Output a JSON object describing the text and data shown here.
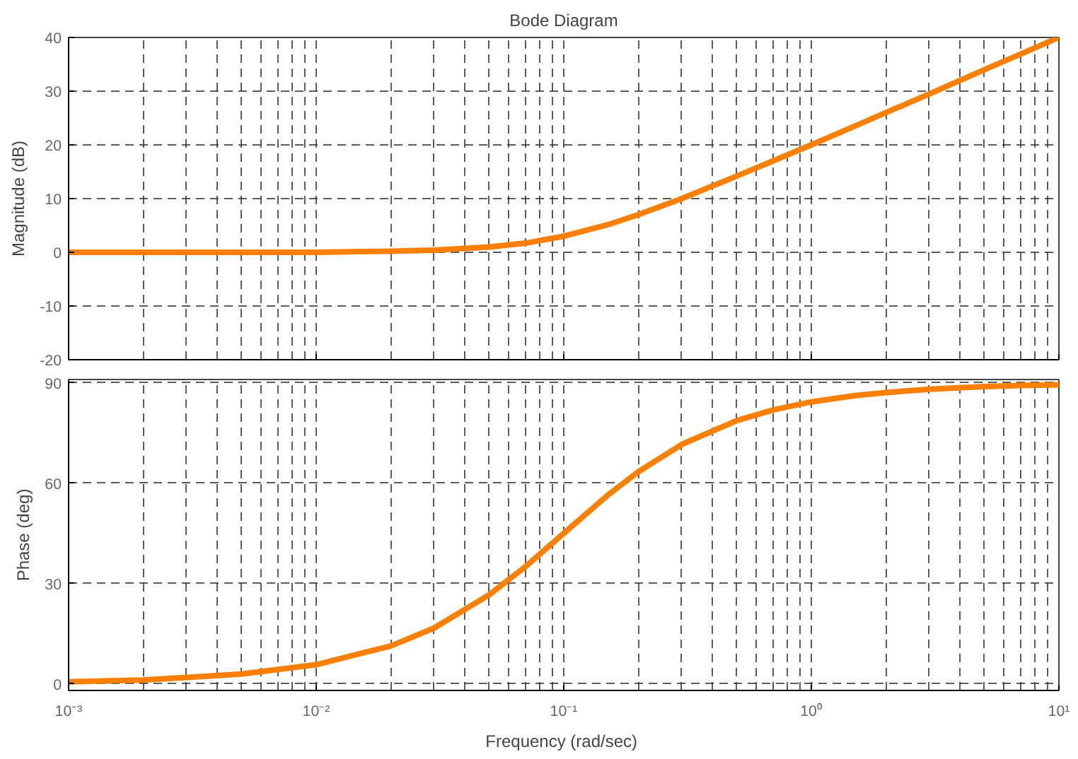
{
  "chart_data": [
    {
      "type": "line",
      "title": "Bode Diagram",
      "ylabel": "Magnitude (dB)",
      "log": "x",
      "grid": true,
      "line_style": "solid",
      "tick_labels": "y",
      "x": [
        0.001,
        0.002,
        0.005,
        0.01,
        0.02,
        0.03,
        0.05,
        0.07,
        0.1,
        0.15,
        0.2,
        0.3,
        0.5,
        0.7,
        1,
        1.5,
        2,
        3,
        5,
        7,
        10
      ],
      "series": [
        {
          "color": "#ff8000",
          "values": [
            0.0,
            0.0,
            0.0,
            0.0,
            0.2,
            0.4,
            1.0,
            1.7,
            3.0,
            5.1,
            7.0,
            10.0,
            14.2,
            17.0,
            20.0,
            23.5,
            26.0,
            29.5,
            34.0,
            36.9,
            40.0
          ]
        }
      ],
      "xlim": [
        0.001,
        10
      ],
      "xticks": [
        {
          "value": 0.001,
          "label": null
        },
        {
          "value": 0.01,
          "label": null
        },
        {
          "value": 0.1,
          "label": null
        },
        {
          "value": 1,
          "label": null
        },
        {
          "value": 10,
          "label": null
        }
      ],
      "ylim": [
        -20,
        40
      ],
      "yticks": [
        -20,
        -10,
        0,
        10,
        20,
        30,
        40
      ]
    },
    {
      "type": "line",
      "xlabel": "Frequency  (rad/sec)",
      "ylabel": "Phase (deg)",
      "log": "x",
      "grid": true,
      "line_style": "solid",
      "x": [
        0.001,
        0.002,
        0.005,
        0.01,
        0.02,
        0.03,
        0.05,
        0.07,
        0.1,
        0.15,
        0.2,
        0.3,
        0.5,
        0.7,
        1,
        1.5,
        2,
        3,
        5,
        7,
        10
      ],
      "series": [
        {
          "color": "#ff8000",
          "values": [
            0.6,
            1.1,
            2.9,
            5.7,
            11.3,
            16.7,
            26.6,
            35.0,
            45.0,
            56.3,
            63.4,
            71.6,
            78.7,
            81.9,
            84.3,
            86.2,
            87.1,
            88.1,
            88.9,
            89.2,
            89.4
          ]
        }
      ],
      "xlim": [
        0.001,
        10
      ],
      "xticks": [
        {
          "value": 0.001,
          "label": "10⁻³"
        },
        {
          "value": 0.01,
          "label": "10⁻²"
        },
        {
          "value": 0.1,
          "label": "10⁻¹"
        },
        {
          "value": 1,
          "label": "10⁰"
        },
        {
          "value": 10,
          "label": "10¹"
        }
      ],
      "ylim": [
        -2,
        91
      ],
      "yticks": [
        0,
        30,
        60,
        90
      ]
    }
  ]
}
